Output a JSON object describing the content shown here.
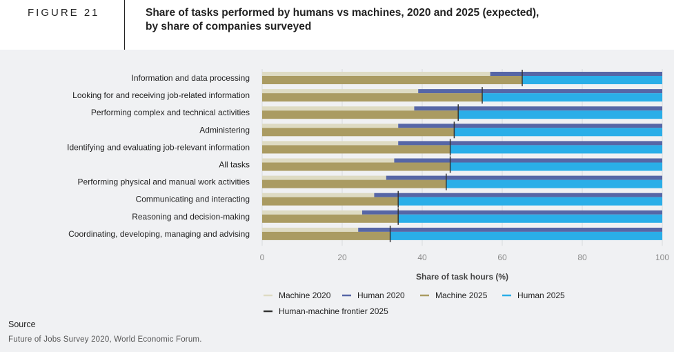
{
  "figure_label": "FIGURE 21",
  "title_line1": "Share of tasks performed by humans vs machines, 2020 and 2025 (expected),",
  "title_line2": "by share of companies surveyed",
  "source_heading": "Source",
  "source_text": "Future of Jobs Survey 2020, World Economic Forum.",
  "colors": {
    "machine_2020": "#dedbc3",
    "human_2020": "#5666a6",
    "machine_2025": "#aa9b62",
    "human_2025": "#2aaee8",
    "frontier": "#333333"
  },
  "chart_data": {
    "type": "bar",
    "orientation": "horizontal",
    "stacked": true,
    "categories": [
      "Information and data processing",
      "Looking for and receiving job-related information",
      "Performing complex and technical activities",
      "Administering",
      "Identifying and evaluating job-relevant information",
      "All tasks",
      "Performing physical and manual work activities",
      "Communicating and interacting",
      "Reasoning and decision-making",
      "Coordinating, developing, managing and advising"
    ],
    "machine_2020": [
      57,
      39,
      38,
      34,
      34,
      33,
      31,
      28,
      25,
      24
    ],
    "machine_2025": [
      65,
      55,
      49,
      48,
      47,
      47,
      46,
      34,
      34,
      32
    ],
    "frontier_2025": [
      65,
      55,
      49,
      48,
      47,
      47,
      46,
      34,
      34,
      32
    ],
    "series": [
      {
        "name": "Machine 2020",
        "key": "machine_2020"
      },
      {
        "name": "Human 2020",
        "key": "human_2020"
      },
      {
        "name": "Machine 2025",
        "key": "machine_2025"
      },
      {
        "name": "Human 2025",
        "key": "human_2025"
      },
      {
        "name": "Human-machine frontier 2025",
        "key": "frontier"
      }
    ],
    "xlabel": "Share of task hours (%)",
    "xlim": [
      0,
      100
    ],
    "xticks": [
      0,
      20,
      40,
      60,
      80,
      100
    ],
    "grid": true,
    "legend_position": "bottom"
  }
}
